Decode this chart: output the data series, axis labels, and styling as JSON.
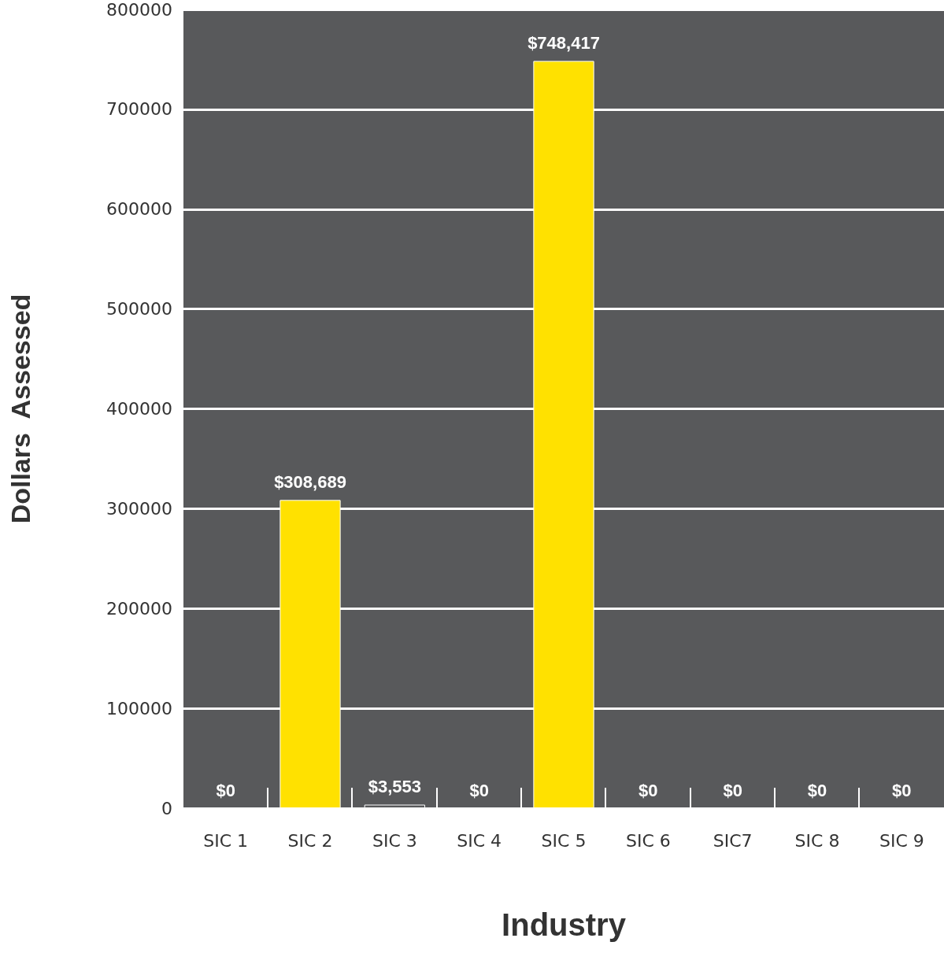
{
  "chart_data": {
    "type": "bar",
    "xlabel": "Industry",
    "ylabel": "Dollars  Assessed",
    "categories": [
      "SIC 1",
      "SIC 2",
      "SIC 3",
      "SIC 4",
      "SIC 5",
      "SIC 6",
      "SIC7",
      "SIC 8",
      "SIC 9"
    ],
    "values": [
      0,
      308689,
      3553,
      0,
      748417,
      0,
      0,
      0,
      0
    ],
    "colors": [
      "#ffe100",
      "#ffe100",
      "#58595b",
      "#ffe100",
      "#ffe100",
      "#ffe100",
      "#ffe100",
      "#ffe100",
      "#ffe100"
    ],
    "value_labels": [
      "$0",
      "$308,689",
      "$3,553",
      "$0",
      "$748,417",
      "$0",
      "$0",
      "$0",
      "$0"
    ],
    "ylim": [
      0,
      800000
    ],
    "yticks": [
      0,
      100000,
      200000,
      300000,
      400000,
      500000,
      600000,
      700000,
      800000
    ],
    "grid": "y"
  }
}
